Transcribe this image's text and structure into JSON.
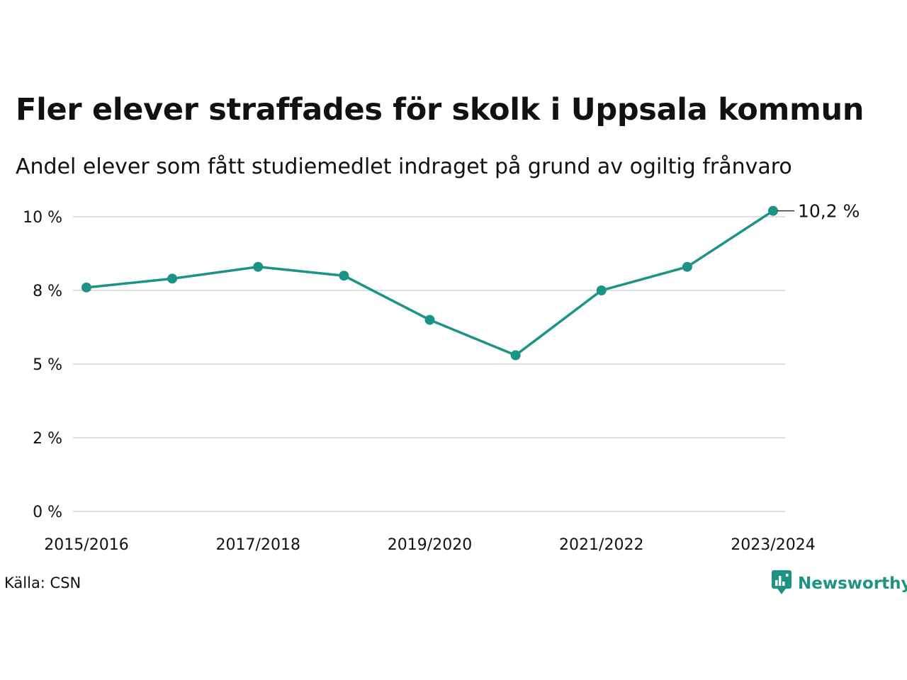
{
  "title": "Fler elever straffades för skolk i Uppsala kommun",
  "subtitle": "Andel elever som fått studiemedlet indraget på grund av ogiltig frånvaro",
  "source": "Källa: CSN",
  "brand": {
    "name": "Newsworthy",
    "icon": "newsworthy-logo-icon"
  },
  "colors": {
    "line": "#1b9385",
    "grid": "#dedede",
    "text": "#111111"
  },
  "chart_data": {
    "type": "line",
    "x": [
      "2015/2016",
      "2016/2017",
      "2017/2018",
      "2018/2019",
      "2019/2020",
      "2020/2021",
      "2021/2022",
      "2022/2023",
      "2023/2024"
    ],
    "x_tick_labels": [
      "2015/2016",
      "2017/2018",
      "2019/2020",
      "2021/2022",
      "2023/2024"
    ],
    "series": [
      {
        "values": [
          7.6,
          7.9,
          8.3,
          8.0,
          6.5,
          5.3,
          7.5,
          8.3,
          10.2
        ]
      }
    ],
    "y_ticks": [
      0,
      2.5,
      5,
      7.5,
      10
    ],
    "y_tick_labels": [
      "0 %",
      "2 %",
      "5 %",
      "8 %",
      "10 %"
    ],
    "ylim": [
      0,
      10
    ],
    "end_label": "10,2 %",
    "grid": true,
    "legend": "none"
  }
}
